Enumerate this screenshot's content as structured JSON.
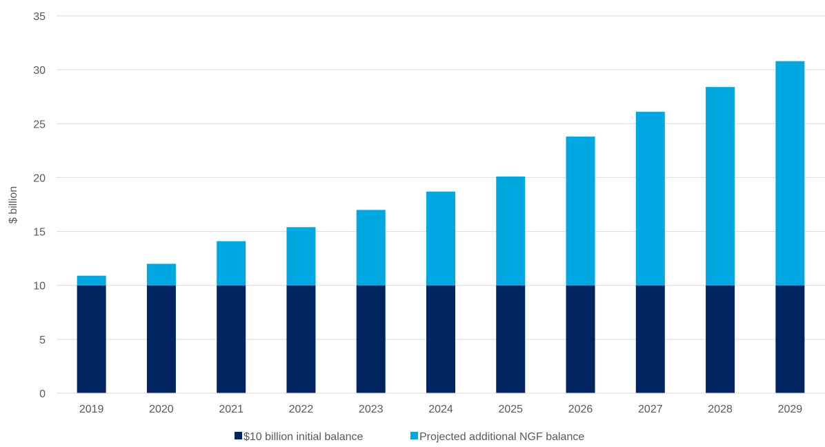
{
  "chart_data": {
    "type": "bar",
    "stacked": true,
    "categories": [
      "2019",
      "2020",
      "2021",
      "2022",
      "2023",
      "2024",
      "2025",
      "2026",
      "2027",
      "2028",
      "2029"
    ],
    "series": [
      {
        "name": "$10 billion initial balance",
        "color": "#002561",
        "values": [
          10,
          10,
          10,
          10,
          10,
          10,
          10,
          10,
          10,
          10,
          10
        ]
      },
      {
        "name": "Projected additional NGF balance",
        "color": "#00a8e1",
        "values": [
          0.9,
          2.0,
          4.1,
          5.4,
          7.0,
          8.7,
          10.1,
          13.8,
          16.1,
          18.4,
          20.8
        ]
      }
    ],
    "title": "",
    "xlabel": "",
    "ylabel": "$ billion",
    "ylim": [
      0,
      35
    ],
    "yticks": [
      0,
      5,
      10,
      15,
      20,
      25,
      30,
      35
    ],
    "grid": true,
    "legend": "bottom-center"
  }
}
